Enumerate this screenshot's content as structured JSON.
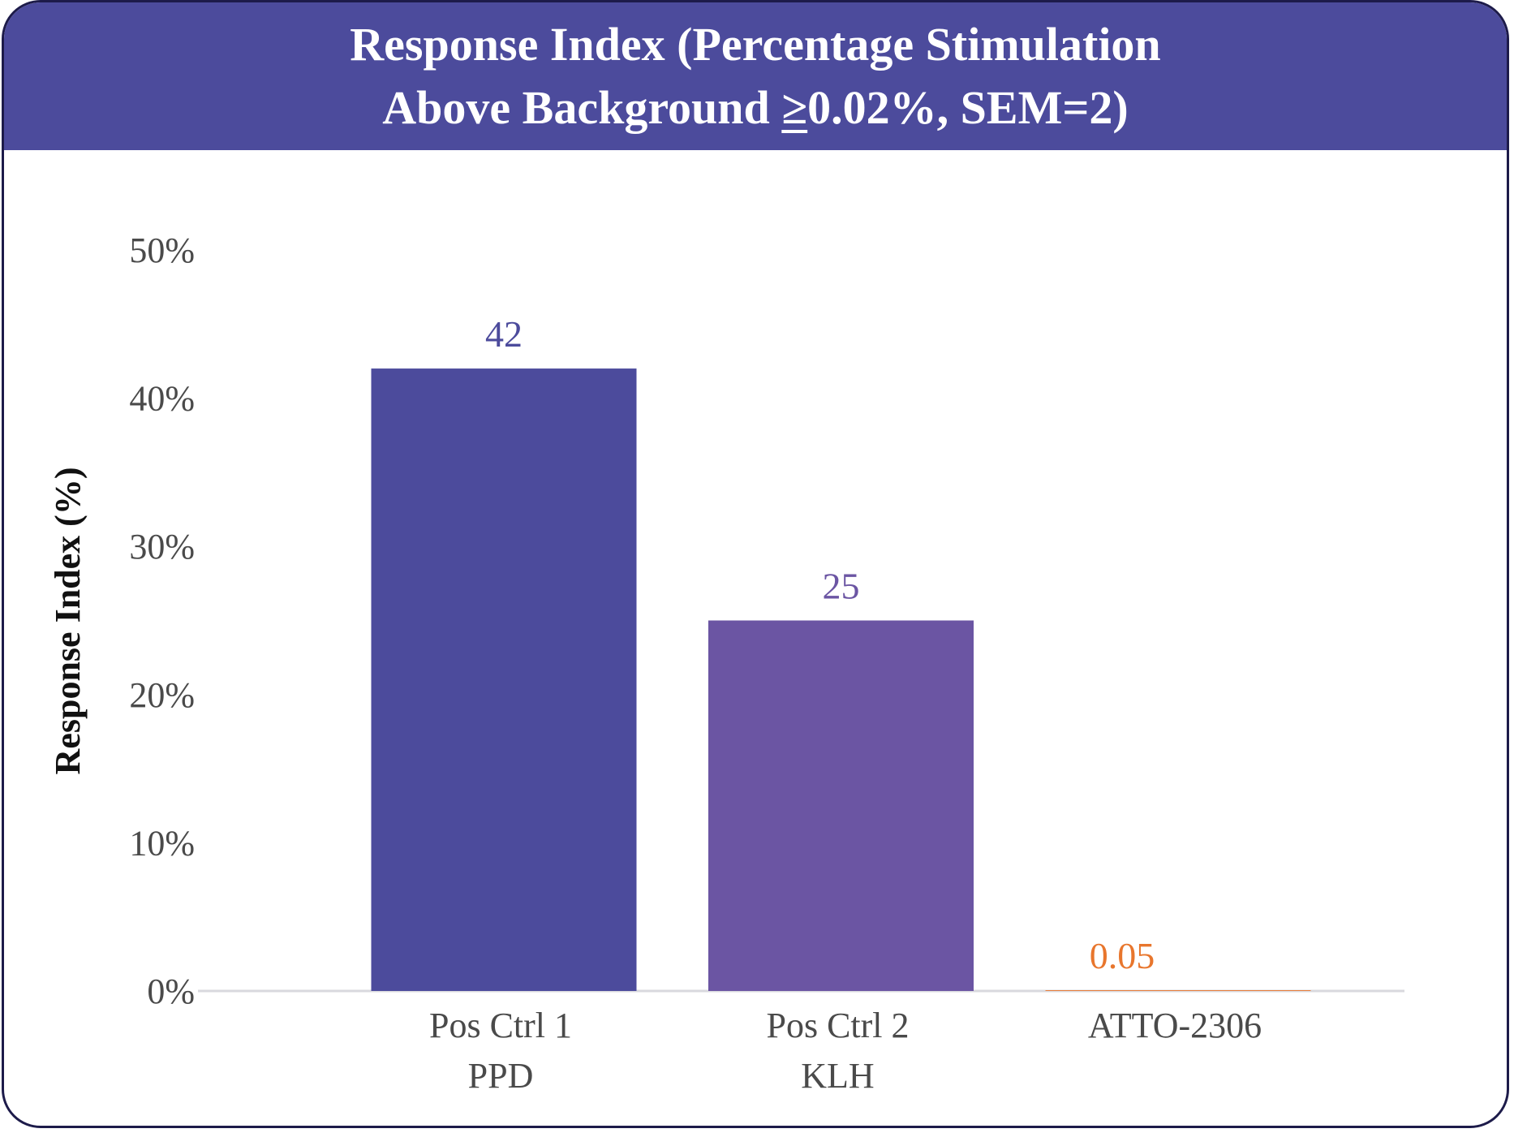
{
  "chart_data": {
    "type": "bar",
    "title_line1": "Response Index (Percentage Stimulation",
    "title_line2_pre": "Above Background ",
    "title_line2_symbol": "≥",
    "title_line2_post": "0.02%, SEM=2)",
    "ylabel": "Response Index (%)",
    "xlabel": "",
    "ylim": [
      0,
      50
    ],
    "yticks": [
      "0%",
      "10%",
      "20%",
      "30%",
      "40%",
      "50%"
    ],
    "ytick_values": [
      0,
      10,
      20,
      30,
      40,
      50
    ],
    "categories": [
      {
        "line1": "Pos Ctrl 1",
        "line2": "PPD"
      },
      {
        "line1": "Pos Ctrl 2",
        "line2": "KLH"
      },
      {
        "line1": "ATTO-2306",
        "line2": ""
      }
    ],
    "values": [
      42,
      25,
      0.05
    ],
    "data_labels": [
      "42",
      "25",
      "0.05"
    ],
    "bar_colors": [
      "#4c4b9c",
      "#6b55a3",
      "#e8762d"
    ],
    "label_colors": [
      "#4c4b9c",
      "#6b55a3",
      "#e8762d"
    ],
    "grid": false,
    "legend": "none"
  },
  "colors": {
    "header": "#4c4b9c",
    "border": "#1d1b4a",
    "axis_line": "#d9d9de"
  }
}
